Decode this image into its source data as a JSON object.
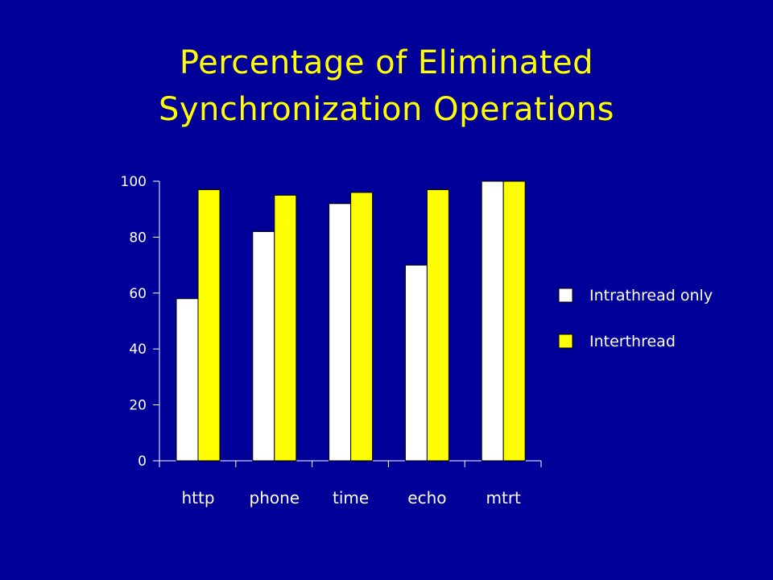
{
  "slide": {
    "title_line_1": "Percentage of Eliminated",
    "title_line_2": "Synchronization Operations"
  },
  "colors": {
    "background": "#000099",
    "title": "#ffff00",
    "axis": "#ffffff",
    "series_intrathread": "#ffffff",
    "series_interthread": "#ffff00"
  },
  "chart_data": {
    "type": "bar",
    "title": "Percentage of Eliminated Synchronization Operations",
    "categories": [
      "http",
      "phone",
      "time",
      "echo",
      "mtrt"
    ],
    "series": [
      {
        "name": "Intrathread only",
        "color": "#ffffff",
        "values": [
          58,
          82,
          92,
          70,
          100
        ]
      },
      {
        "name": "Interthread",
        "color": "#ffff00",
        "values": [
          97,
          95,
          96,
          97,
          100
        ]
      }
    ],
    "yticks": [
      "0",
      "20",
      "40",
      "60",
      "80",
      "100"
    ],
    "ylim": [
      0,
      100
    ],
    "grid": false,
    "legend_position": "right"
  }
}
